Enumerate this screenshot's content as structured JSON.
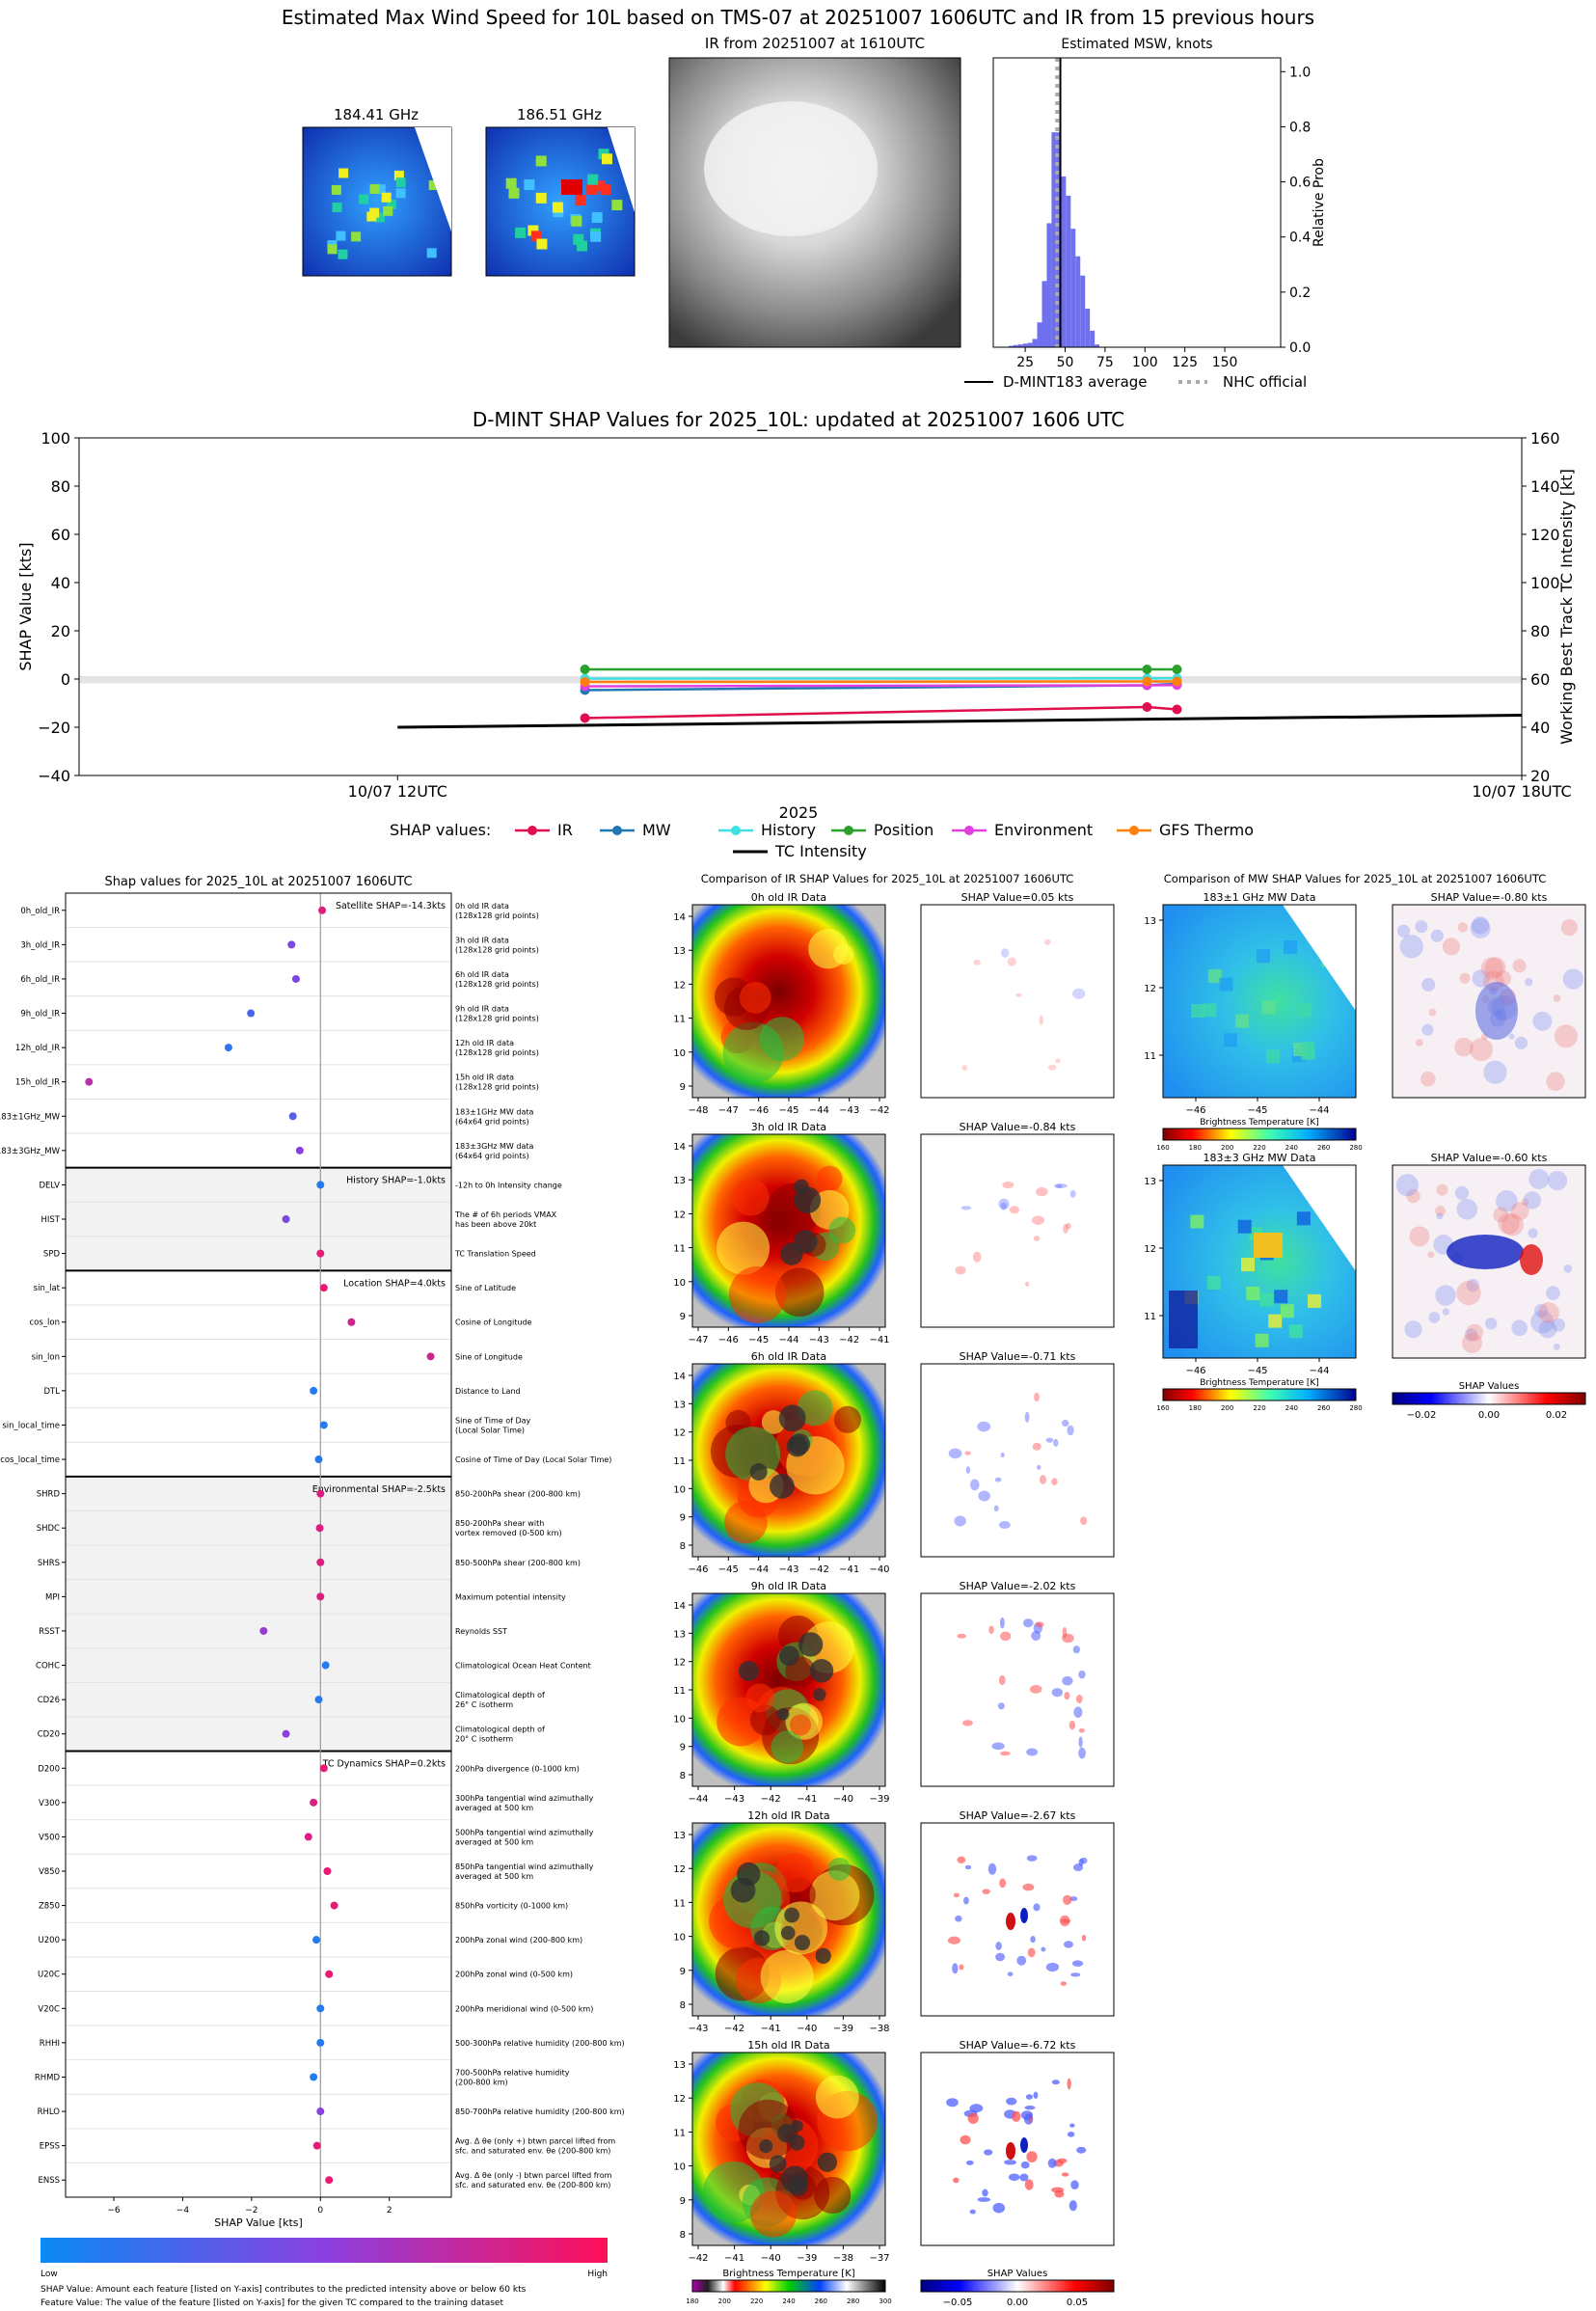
{
  "header": {
    "title": "Estimated Max Wind Speed for 10L based on TMS-07 at 20251007 1606UTC and IR from 15 previous hours"
  },
  "colors": {
    "ir": "#e0104e",
    "mw": "#1f77b4",
    "history": "#40e0e0",
    "position": "#2ca02c",
    "environment": "#e040e0",
    "gfs": "#ff7f0e",
    "low": "#1e88f0",
    "high": "#ff1060",
    "hist_bar": "#7070ee"
  },
  "top_panels": {
    "mw1": {
      "label": "184.41 GHz"
    },
    "mw2": {
      "label": "186.51 GHz"
    },
    "ir": {
      "label": "IR from 20251007 at 1610UTC"
    }
  },
  "hist_chart": {
    "title": "Estimated MSW, knots",
    "ylabel": "Relative Prob",
    "xticks": [
      "25",
      "50",
      "75",
      "100",
      "125",
      "150"
    ],
    "yticks": [
      "0.0",
      "0.2",
      "0.4",
      "0.6",
      "0.8",
      "1.0"
    ],
    "legend": [
      "D-MINT183 average",
      "NHC official"
    ]
  },
  "chart_data": [
    {
      "type": "bar",
      "title": "Estimated MSW, knots",
      "ylabel": "Relative Prob",
      "xlim": [
        5,
        185
      ],
      "ylim": [
        0,
        1.05
      ],
      "bin_width": 3,
      "x": [
        16,
        19,
        22,
        25,
        28,
        31,
        34,
        37,
        40,
        43,
        46,
        49,
        52,
        55,
        58,
        61,
        64,
        67,
        70
      ],
      "values": [
        0.005,
        0.008,
        0.01,
        0.013,
        0.016,
        0.03,
        0.09,
        0.24,
        0.45,
        0.78,
        0.78,
        0.62,
        0.55,
        0.43,
        0.33,
        0.26,
        0.14,
        0.06,
        0.01
      ],
      "d_mint_average": 47,
      "nhc_official": 45
    },
    {
      "type": "line",
      "title": "D-MINT SHAP Values for 2025_10L: updated at 20251007 1606 UTC",
      "ylabel": "SHAP Value [kts]",
      "y2label": "Working Best Track TC Intensity [kt]",
      "xlabel": "2025",
      "ylim": [
        -40,
        100
      ],
      "y2lim": [
        20,
        160
      ],
      "yticks": [
        "100",
        "80",
        "60",
        "40",
        "20",
        "0",
        "−20",
        "−40"
      ],
      "y2ticks": [
        "160",
        "140",
        "120",
        "100",
        "80",
        "60",
        "40",
        "20"
      ],
      "xticks": [
        "10/07 12UTC",
        "10/07 18UTC"
      ],
      "legend_title": "SHAP values:",
      "series": [
        {
          "name": "IR",
          "x": [
            13.0,
            16.0,
            16.16
          ],
          "values": [
            -16.2,
            -11.6,
            -12.6
          ]
        },
        {
          "name": "MW",
          "x": [
            13.0,
            16.0,
            16.16
          ],
          "values": [
            -4.6,
            -2.6,
            -2.0
          ]
        },
        {
          "name": "History",
          "x": [
            13.0,
            16.0,
            16.16
          ],
          "values": [
            0.2,
            0.3,
            0.3
          ]
        },
        {
          "name": "Position",
          "x": [
            13.0,
            16.0,
            16.16
          ],
          "values": [
            4.0,
            4.0,
            4.0
          ]
        },
        {
          "name": "Environment",
          "x": [
            13.0,
            16.0,
            16.16
          ],
          "values": [
            -3.0,
            -2.6,
            -2.5
          ]
        },
        {
          "name": "GFS Thermo",
          "x": [
            13.0,
            16.0,
            16.16
          ],
          "values": [
            -1.2,
            -1.0,
            -1.0
          ]
        },
        {
          "name": "TC Intensity",
          "axis": "right",
          "x": [
            12.0,
            18.0
          ],
          "values": [
            40,
            45
          ]
        }
      ]
    },
    {
      "type": "scatter",
      "title": "Shap values for 2025_10L at 20251007 1606UTC",
      "xlabel": "SHAP Value [kts]",
      "xlim": [
        -7.4,
        3.8
      ],
      "xticks": [
        "−6",
        "−4",
        "−2",
        "0",
        "2"
      ],
      "groups": [
        {
          "label": "Satellite SHAP=-14.3kts",
          "shaded": false,
          "features": [
            {
              "name": "0h_old_IR",
              "desc": [
                "0h old IR data",
                "(128x128 grid points)"
              ],
              "shap": 0.05,
              "value": 0.85
            },
            {
              "name": "3h_old_IR",
              "desc": [
                "3h old IR data",
                "(128x128 grid points)"
              ],
              "shap": -0.84,
              "value": 0.45
            },
            {
              "name": "6h_old_IR",
              "desc": [
                "6h old IR data",
                "(128x128 grid points)"
              ],
              "shap": -0.71,
              "value": 0.45
            },
            {
              "name": "9h_old_IR",
              "desc": [
                "9h old IR data",
                "(128x128 grid points)"
              ],
              "shap": -2.02,
              "value": 0.25
            },
            {
              "name": "12h_old_IR",
              "desc": [
                "12h old IR data",
                "(128x128 grid points)"
              ],
              "shap": -2.67,
              "value": 0.15
            },
            {
              "name": "15h_old_IR",
              "desc": [
                "15h old IR data",
                "(128x128 grid points)"
              ],
              "shap": -6.72,
              "value": 0.7
            },
            {
              "name": "183±1GHz_MW",
              "desc": [
                "183±1GHz MW data",
                "(64x64 grid points)"
              ],
              "shap": -0.8,
              "value": 0.3
            },
            {
              "name": "183±3GHz_MW",
              "desc": [
                "183±3GHz MW data",
                "(64x64 grid points)"
              ],
              "shap": -0.6,
              "value": 0.5
            }
          ]
        },
        {
          "label": "History SHAP=-1.0kts",
          "shaded": true,
          "features": [
            {
              "name": "DELV",
              "desc": [
                "-12h to 0h Intensity change"
              ],
              "shap": 0.0,
              "value": 0.1
            },
            {
              "name": "HIST",
              "desc": [
                "The # of 6h periods VMAX",
                "has been above 20kt"
              ],
              "shap": -1.0,
              "value": 0.45
            },
            {
              "name": "SPD",
              "desc": [
                "TC Translation Speed"
              ],
              "shap": 0.0,
              "value": 0.9
            }
          ]
        },
        {
          "label": "Location SHAP=4.0kts",
          "shaded": false,
          "features": [
            {
              "name": "sin_lat",
              "desc": [
                "Sine of Latitude"
              ],
              "shap": 0.1,
              "value": 0.9
            },
            {
              "name": "cos_lon",
              "desc": [
                "Cosine of Longitude"
              ],
              "shap": 0.9,
              "value": 0.8
            },
            {
              "name": "sin_lon",
              "desc": [
                "Sine of Longitude"
              ],
              "shap": 3.2,
              "value": 0.8
            },
            {
              "name": "DTL",
              "desc": [
                "Distance to Land"
              ],
              "shap": -0.2,
              "value": 0.1
            },
            {
              "name": "sin_local_time",
              "desc": [
                "Sine of Time of Day",
                "(Local Solar Time)"
              ],
              "shap": 0.1,
              "value": 0.1
            },
            {
              "name": "cos_local_time",
              "desc": [
                "Cosine of Time of Day (Local Solar Time)"
              ],
              "shap": -0.05,
              "value": 0.1
            }
          ]
        },
        {
          "label": "Environmental SHAP=-2.5kts",
          "shaded": true,
          "features": [
            {
              "name": "SHRD",
              "desc": [
                "850-200hPa shear (200-800 km)"
              ],
              "shap": 0.0,
              "value": 0.85
            },
            {
              "name": "SHDC",
              "desc": [
                "850-200hPa shear with",
                "vortex removed (0-500 km)"
              ],
              "shap": -0.02,
              "value": 0.85
            },
            {
              "name": "SHRS",
              "desc": [
                "850-500hPa shear (200-800 km)"
              ],
              "shap": 0.0,
              "value": 0.85
            },
            {
              "name": "MPI",
              "desc": [
                "Maximum potential intensity"
              ],
              "shap": 0.0,
              "value": 0.85
            },
            {
              "name": "RSST",
              "desc": [
                "Reynolds SST"
              ],
              "shap": -1.65,
              "value": 0.55
            },
            {
              "name": "COHC",
              "desc": [
                "Climatological Ocean Heat Content"
              ],
              "shap": 0.15,
              "value": 0.1
            },
            {
              "name": "CD26",
              "desc": [
                "Climatological depth of",
                "26° C isotherm"
              ],
              "shap": -0.05,
              "value": 0.1
            },
            {
              "name": "CD20",
              "desc": [
                "Climatological depth of",
                "20° C isotherm"
              ],
              "shap": -1.0,
              "value": 0.5
            }
          ]
        },
        {
          "label": "TC Dynamics SHAP=0.2kts",
          "shaded": false,
          "features": [
            {
              "name": "D200",
              "desc": [
                "200hPa divergence (0-1000 km)"
              ],
              "shap": 0.1,
              "value": 0.9
            },
            {
              "name": "V300",
              "desc": [
                "300hPa tangential wind azimuthally",
                "averaged at 500 km"
              ],
              "shap": -0.2,
              "value": 0.85
            },
            {
              "name": "V500",
              "desc": [
                "500hPa tangential wind azimuthally",
                "averaged at 500 km"
              ],
              "shap": -0.35,
              "value": 0.85
            },
            {
              "name": "V850",
              "desc": [
                "850hPa tangential wind azimuthally",
                "averaged at 500 km"
              ],
              "shap": 0.2,
              "value": 0.9
            },
            {
              "name": "Z850",
              "desc": [
                "850hPa vorticity (0-1000 km)"
              ],
              "shap": 0.4,
              "value": 0.9
            },
            {
              "name": "U200",
              "desc": [
                "200hPa zonal wind (200-800 km)"
              ],
              "shap": -0.12,
              "value": 0.1
            },
            {
              "name": "U20C",
              "desc": [
                "200hPa zonal wind (0-500 km)"
              ],
              "shap": 0.25,
              "value": 0.9
            },
            {
              "name": "V20C",
              "desc": [
                "200hPa meridional wind (0-500 km)"
              ],
              "shap": 0.0,
              "value": 0.1
            },
            {
              "name": "RHHI",
              "desc": [
                "500-300hPa relative humidity (200-800 km)"
              ],
              "shap": 0.0,
              "value": 0.1
            },
            {
              "name": "RHMD",
              "desc": [
                "700-500hPa relative humidity",
                "(200-800 km)"
              ],
              "shap": -0.2,
              "value": 0.1
            },
            {
              "name": "RHLO",
              "desc": [
                "850-700hPa relative humidity (200-800 km)"
              ],
              "shap": 0.0,
              "value": 0.5
            },
            {
              "name": "EPSS",
              "desc": [
                "Avg. Δ θe (only +) btwn parcel lifted from",
                "sfc. and saturated env. θe (200-800 km)"
              ],
              "shap": -0.1,
              "value": 0.9
            },
            {
              "name": "ENSS",
              "desc": [
                "Avg. Δ θe (only -) btwn parcel lifted from",
                "sfc. and saturated env. θe (200-800 km)"
              ],
              "shap": 0.25,
              "value": 0.9
            }
          ]
        }
      ]
    }
  ],
  "legend_row": {
    "title": "SHAP values:",
    "items": [
      "IR",
      "MW",
      "History",
      "Position",
      "Environment",
      "GFS Thermo"
    ],
    "intensity": "TC Intensity"
  },
  "ir_comparison": {
    "title": "Comparison of IR SHAP Values for 2025_10L at 20251007 1606UTC",
    "rows": [
      {
        "label": "0h old IR Data",
        "shap": "SHAP Value=0.05 kts",
        "yticks": [
          "14",
          "13",
          "12",
          "11",
          "10",
          "9"
        ],
        "xticks": [
          "−48",
          "−47",
          "−46",
          "−45",
          "−44",
          "−43",
          "−42"
        ]
      },
      {
        "label": "3h old IR Data",
        "shap": "SHAP Value=-0.84 kts",
        "yticks": [
          "14",
          "13",
          "12",
          "11",
          "10",
          "9"
        ],
        "xticks": [
          "−47",
          "−46",
          "−45",
          "−44",
          "−43",
          "−42",
          "−41"
        ]
      },
      {
        "label": "6h old IR Data",
        "shap": "SHAP Value=-0.71 kts",
        "yticks": [
          "14",
          "13",
          "12",
          "11",
          "10",
          "9",
          "8"
        ],
        "xticks": [
          "−46",
          "−45",
          "−44",
          "−43",
          "−42",
          "−41",
          "−40"
        ]
      },
      {
        "label": "9h old IR Data",
        "shap": "SHAP Value=-2.02 kts",
        "yticks": [
          "14",
          "13",
          "12",
          "11",
          "10",
          "9",
          "8"
        ],
        "xticks": [
          "−44",
          "−43",
          "−42",
          "−41",
          "−40",
          "−39"
        ]
      },
      {
        "label": "12h old IR Data",
        "shap": "SHAP Value=-2.67 kts",
        "yticks": [
          "13",
          "12",
          "11",
          "10",
          "9",
          "8"
        ],
        "xticks": [
          "−43",
          "−42",
          "−41",
          "−40",
          "−39",
          "−38"
        ]
      },
      {
        "label": "15h old IR Data",
        "shap": "SHAP Value=-6.72 kts",
        "yticks": [
          "13",
          "12",
          "11",
          "10",
          "9",
          "8"
        ],
        "xticks": [
          "−42",
          "−41",
          "−40",
          "−39",
          "−38",
          "−37"
        ]
      }
    ],
    "bt_label": "Brightness Temperature [K]",
    "bt_ticks": [
      "180",
      "200",
      "220",
      "240",
      "260",
      "280",
      "300"
    ],
    "shap_label": "SHAP Values",
    "shap_ticks": [
      "−0.05",
      "0.00",
      "0.05"
    ]
  },
  "mw_comparison": {
    "title": "Comparison of MW SHAP Values for 2025_10L at 20251007 1606UTC",
    "rows": [
      {
        "label": "183±1 GHz MW Data",
        "shap": "SHAP Value=-0.80 kts",
        "yticks": [
          "13",
          "12",
          "11"
        ],
        "xticks": [
          "−46",
          "−45",
          "−44"
        ]
      },
      {
        "label": "183±3 GHz MW Data",
        "shap": "SHAP Value=-0.60 kts",
        "yticks": [
          "13",
          "12",
          "11"
        ],
        "xticks": [
          "−46",
          "−45",
          "−44"
        ]
      }
    ],
    "bt_label": "Brightness Temperature [K]",
    "bt_ticks": [
      "160",
      "180",
      "200",
      "220",
      "240",
      "260",
      "280"
    ],
    "shap_label": "SHAP Values",
    "shap_ticks": [
      "−0.02",
      "0.00",
      "0.02"
    ]
  },
  "bottom": {
    "low": "Low",
    "high": "High",
    "note1": "SHAP Value: Amount each feature [listed on Y-axis] contributes to the predicted intensity above or below 60 kts",
    "note2": "Feature Value: The value of the feature [listed on Y-axis] for the given TC compared to the training dataset"
  }
}
